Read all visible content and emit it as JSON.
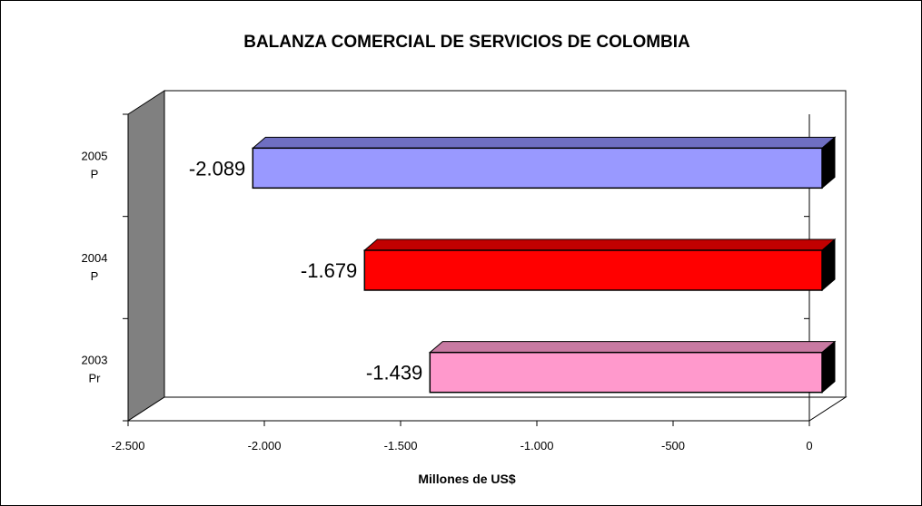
{
  "chart_data": {
    "type": "bar",
    "orientation": "horizontal",
    "three_d": true,
    "title": "BALANZA COMERCIAL DE SERVICIOS DE COLOMBIA",
    "xlabel": "Millones de US$",
    "ylabel": "",
    "xlim": [
      -2500,
      0
    ],
    "x_ticks": [
      -2500,
      -2000,
      -1500,
      -1000,
      -500,
      0
    ],
    "x_tick_labels": [
      "-2.500",
      "-2.000",
      "-1.500",
      "-1.000",
      "-500",
      "0"
    ],
    "grid": false,
    "legend": "none",
    "categories": [
      {
        "line1": "2005",
        "line2": "P"
      },
      {
        "line1": "2004",
        "line2": "P"
      },
      {
        "line1": "2003",
        "line2": "Pr"
      }
    ],
    "values": [
      -2089,
      -1679,
      -1439
    ],
    "value_labels": [
      "-2.089",
      "-1.679",
      "-1.439"
    ],
    "colors": {
      "bars": [
        "#9999ff",
        "#ff0000",
        "#ff99cc"
      ],
      "bar_tops": [
        "#6f6fc2",
        "#c20000",
        "#c87aa2"
      ],
      "bar_ends": "#000000",
      "side_wall": "#808080"
    }
  }
}
